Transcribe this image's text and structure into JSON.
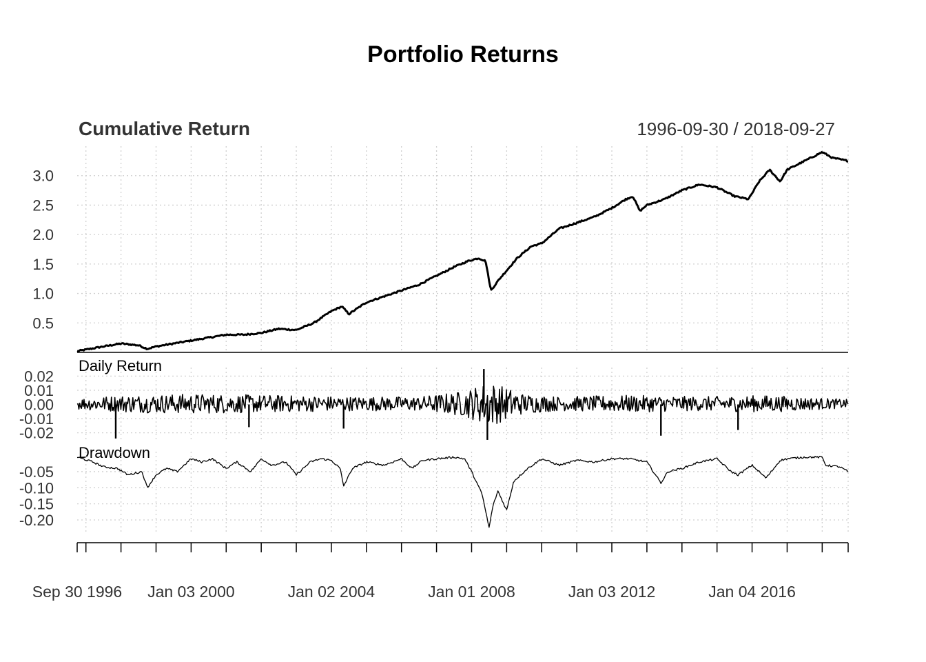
{
  "chart_data": {
    "type": "line",
    "title": "Portfolio Returns",
    "date_range": "1996-09-30 / 2018-09-27",
    "x_start": 1996.75,
    "x_end": 2018.74,
    "x_tick_labels": [
      {
        "label": "Sep 30 1996",
        "x": 1996.75
      },
      {
        "label": "Jan 03 2000",
        "x": 2000.0
      },
      {
        "label": "Jan 02 2004",
        "x": 2004.0
      },
      {
        "label": "Jan 01 2008",
        "x": 2008.0
      },
      {
        "label": "Jan 03 2012",
        "x": 2012.0
      },
      {
        "label": "Jan 04 2016",
        "x": 2016.0
      }
    ],
    "x_minor_ticks": [
      1997.0,
      1998.0,
      1999.0,
      2000.0,
      2001.0,
      2002.0,
      2003.0,
      2004.0,
      2005.0,
      2006.0,
      2007.0,
      2008.0,
      2009.0,
      2010.0,
      2011.0,
      2012.0,
      2013.0,
      2014.0,
      2015.0,
      2016.0,
      2017.0,
      2018.0,
      2018.74
    ],
    "panels": [
      {
        "id": "cumulative",
        "title": "Cumulative Return",
        "ylim": [
          0.0,
          3.5
        ],
        "yticks": [
          0.5,
          1.0,
          1.5,
          2.0,
          2.5,
          3.0
        ],
        "ytick_labels": [
          "0.5",
          "1.0",
          "1.5",
          "2.0",
          "2.5",
          "3.0"
        ],
        "x": [
          1996.75,
          1997.5,
          1998.0,
          1998.5,
          1998.75,
          1999.0,
          1999.5,
          2000.0,
          2000.5,
          2001.0,
          2001.5,
          2002.0,
          2002.5,
          2003.0,
          2003.5,
          2004.0,
          2004.3,
          2004.5,
          2005.0,
          2005.5,
          2006.0,
          2006.5,
          2007.0,
          2007.5,
          2007.9,
          2008.2,
          2008.4,
          2008.55,
          2008.8,
          2009.3,
          2009.7,
          2010.0,
          2010.5,
          2011.0,
          2011.5,
          2012.0,
          2012.4,
          2012.6,
          2012.8,
          2013.0,
          2013.5,
          2014.0,
          2014.5,
          2015.0,
          2015.5,
          2015.9,
          2016.2,
          2016.5,
          2016.8,
          2017.0,
          2017.5,
          2018.0,
          2018.3,
          2018.74
        ],
        "values": [
          0.02,
          0.1,
          0.15,
          0.12,
          0.06,
          0.1,
          0.15,
          0.2,
          0.25,
          0.3,
          0.3,
          0.33,
          0.4,
          0.38,
          0.5,
          0.7,
          0.78,
          0.65,
          0.85,
          0.95,
          1.05,
          1.15,
          1.3,
          1.45,
          1.55,
          1.6,
          1.55,
          1.05,
          1.25,
          1.6,
          1.8,
          1.85,
          2.1,
          2.2,
          2.3,
          2.45,
          2.6,
          2.65,
          2.4,
          2.5,
          2.6,
          2.75,
          2.85,
          2.8,
          2.65,
          2.6,
          2.9,
          3.1,
          2.9,
          3.1,
          3.25,
          3.4,
          3.3,
          3.25
        ]
      },
      {
        "id": "daily",
        "title": "Daily Return",
        "ylim": [
          -0.026,
          0.026
        ],
        "yticks": [
          0.02,
          0.01,
          0.0,
          -0.01,
          -0.02
        ],
        "ytick_labels": [
          "0.02",
          "0.01",
          "0.00",
          "-0.01",
          "-0.02"
        ],
        "volatility": [
          {
            "x": 1996.75,
            "amp": 0.004
          },
          {
            "x": 1998.0,
            "amp": 0.006
          },
          {
            "x": 2000.0,
            "amp": 0.007
          },
          {
            "x": 2002.5,
            "amp": 0.006
          },
          {
            "x": 2004.5,
            "amp": 0.005
          },
          {
            "x": 2006.5,
            "amp": 0.005
          },
          {
            "x": 2007.8,
            "amp": 0.009
          },
          {
            "x": 2008.5,
            "amp": 0.016
          },
          {
            "x": 2009.5,
            "amp": 0.007
          },
          {
            "x": 2010.5,
            "amp": 0.005
          },
          {
            "x": 2012.5,
            "amp": 0.006
          },
          {
            "x": 2014.5,
            "amp": 0.005
          },
          {
            "x": 2016.5,
            "amp": 0.006
          },
          {
            "x": 2018.74,
            "amp": 0.003
          }
        ],
        "spikes": [
          {
            "x": 1997.85,
            "value": -0.024
          },
          {
            "x": 2001.65,
            "value": -0.016
          },
          {
            "x": 2004.35,
            "value": -0.017
          },
          {
            "x": 2008.35,
            "value": 0.025
          },
          {
            "x": 2008.45,
            "value": -0.025
          },
          {
            "x": 2013.4,
            "value": -0.022
          },
          {
            "x": 2015.6,
            "value": -0.018
          }
        ]
      },
      {
        "id": "drawdown",
        "title": "Drawdown",
        "ylim": [
          -0.245,
          0.012
        ],
        "yticks": [
          -0.05,
          -0.1,
          -0.15,
          -0.2
        ],
        "ytick_labels": [
          "-0.05",
          "-0.10",
          "-0.15",
          "-0.20"
        ],
        "x": [
          1996.75,
          1997.2,
          1997.5,
          1997.9,
          1998.2,
          1998.6,
          1998.75,
          1999.0,
          1999.3,
          1999.6,
          2000.0,
          2000.3,
          2000.6,
          2001.0,
          2001.3,
          2001.7,
          2002.0,
          2002.3,
          2002.7,
          2003.0,
          2003.4,
          2003.7,
          2004.0,
          2004.25,
          2004.35,
          2004.6,
          2005.0,
          2005.5,
          2006.0,
          2006.3,
          2006.6,
          2007.0,
          2007.5,
          2007.8,
          2008.0,
          2008.3,
          2008.5,
          2008.6,
          2008.75,
          2009.0,
          2009.2,
          2009.6,
          2010.0,
          2010.5,
          2011.0,
          2011.5,
          2012.0,
          2012.5,
          2013.0,
          2013.4,
          2013.6,
          2014.0,
          2014.5,
          2015.0,
          2015.4,
          2015.6,
          2016.0,
          2016.4,
          2016.8,
          2017.0,
          2017.5,
          2018.0,
          2018.1,
          2018.5,
          2018.74
        ],
        "values": [
          -0.005,
          -0.02,
          -0.035,
          -0.04,
          -0.06,
          -0.05,
          -0.1,
          -0.06,
          -0.04,
          -0.05,
          -0.01,
          -0.02,
          -0.01,
          -0.04,
          -0.02,
          -0.05,
          -0.01,
          -0.03,
          -0.02,
          -0.06,
          -0.02,
          -0.01,
          -0.015,
          -0.04,
          -0.095,
          -0.04,
          -0.02,
          -0.03,
          -0.01,
          -0.04,
          -0.015,
          -0.01,
          -0.005,
          -0.01,
          -0.05,
          -0.12,
          -0.225,
          -0.16,
          -0.11,
          -0.17,
          -0.08,
          -0.04,
          -0.01,
          -0.03,
          -0.015,
          -0.02,
          -0.01,
          -0.01,
          -0.02,
          -0.085,
          -0.05,
          -0.04,
          -0.02,
          -0.01,
          -0.05,
          -0.06,
          -0.03,
          -0.07,
          -0.015,
          -0.01,
          -0.005,
          -0.005,
          -0.03,
          -0.035,
          -0.05
        ]
      }
    ]
  }
}
